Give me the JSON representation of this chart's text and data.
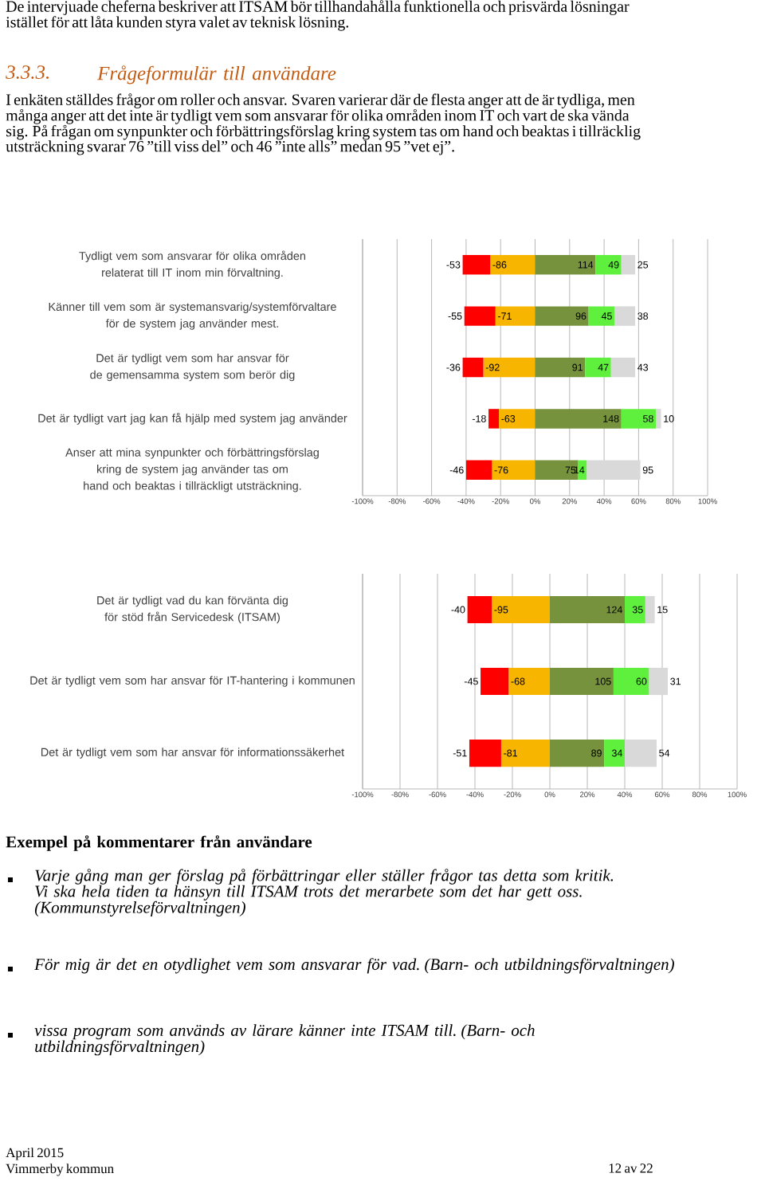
{
  "chart_data": [
    {
      "type": "bar",
      "orientation": "horizontal",
      "stacked": true,
      "grid": "x",
      "annotations": [
        "De intervjuade cheferna beskriver att ITSAM bör tillhandahålla funktionella och prisvärda lösningar istället för att låta kunden styra valet av teknisk lösning.",
        "3.3.3.",
        "Frågeformulär till användare",
        "I enkäten ställdes frågor om roller och ansvar. Svaren varierar där de flesta anger att de är tydliga, men många anger att det inte är tydligt vem som ansvarar för olika områden inom IT och vart de ska vända sig. På frågan om synpunkter och förbättringsförslag kring system tas om hand och beaktas i tillräcklig utsträckning svarar 76 ”till viss del” och 46 ”inte alls” medan 95 ”vet ej”.",
        {
          "text": "-86",
          "x": -26,
          "y": "Tydligt vem som ansvarar för olika områden relaterat till IT inom min förvaltning."
        },
        {
          "text": "-53",
          "x": -42,
          "y": "Tydligt vem som ansvarar för olika områden relaterat till IT inom min förvaltning."
        },
        {
          "text": "114",
          "x": 35,
          "y": "Tydligt vem som ansvarar för olika områden relaterat till IT inom min förvaltning."
        },
        {
          "text": "49",
          "x": 50,
          "y": "Tydligt vem som ansvarar för olika områden relaterat till IT inom min förvaltning."
        },
        {
          "text": "25",
          "x": 58,
          "y": "Tydligt vem som ansvarar för olika områden relaterat till IT inom min förvaltning."
        },
        {
          "text": "-71",
          "x": -23,
          "y": "Känner till vem som är systemansvarig/systemförvaltare för de system jag använder mest."
        },
        {
          "text": "-55",
          "x": -41,
          "y": "Känner till vem som är systemansvarig/systemförvaltare för de system jag använder mest."
        },
        {
          "text": "96",
          "x": 31,
          "y": "Känner till vem som är systemansvarig/systemförvaltare för de system jag använder mest."
        },
        {
          "text": "45",
          "x": 46,
          "y": "Känner till vem som är systemansvarig/systemförvaltare för de system jag använder mest."
        },
        {
          "text": "38",
          "x": 58,
          "y": "Känner till vem som är systemansvarig/systemförvaltare för de system jag använder mest."
        },
        {
          "text": "-92",
          "x": -30,
          "y": "Det är tydligt vem som har ansvar för de gemensamma system som berör dig"
        },
        {
          "text": "-36",
          "x": -42,
          "y": "Det är tydligt vem som har ansvar för de gemensamma system som berör dig"
        },
        {
          "text": "91",
          "x": 29,
          "y": "Det är tydligt vem som har ansvar för de gemensamma system som berör dig"
        },
        {
          "text": "47",
          "x": 44,
          "y": "Det är tydligt vem som har ansvar för de gemensamma system som berör dig"
        },
        {
          "text": "43",
          "x": 58,
          "y": "Det är tydligt vem som har ansvar för de gemensamma system som berör dig"
        },
        {
          "text": "-63",
          "x": -21,
          "y": "Det är tydligt vart jag kan få hjälp med system jag använder"
        },
        {
          "text": "-18",
          "x": -27,
          "y": "Det är tydligt vart jag kan få hjälp med system jag använder"
        },
        {
          "text": "148",
          "x": 50,
          "y": "Det är tydligt vart jag kan få hjälp med system jag använder"
        },
        {
          "text": "58",
          "x": 70,
          "y": "Det är tydligt vart jag kan få hjälp med system jag använder"
        },
        {
          "text": "10",
          "x": 73,
          "y": "Det är tydligt vart jag kan få hjälp med system jag använder"
        },
        {
          "text": "-76",
          "x": -25,
          "y": "Anser att mina synpunkter och förbättringsförslag kring de system jag använder tas om hand och beaktas i tillräckligt utsträckning."
        },
        {
          "text": "-46",
          "x": -40,
          "y": "Anser att mina synpunkter och förbättringsförslag kring de system jag använder tas om hand och beaktas i tillräckligt utsträckning."
        },
        {
          "text": "75",
          "x": 25,
          "y": "Anser att mina synpunkter och förbättringsförslag kring de system jag använder tas om hand och beaktas i tillräckligt utsträckning."
        },
        {
          "text": "14",
          "x": 30,
          "y": "Anser att mina synpunkter och förbättringsförslag kring de system jag använder tas om hand och beaktas i tillräckligt utsträckning."
        },
        {
          "text": "95",
          "x": 61,
          "y": "Anser att mina synpunkter och förbättringsförslag kring de system jag använder tas om hand och beaktas i tillräckligt utsträckning."
        }
      ],
      "categories": [
        "Tydligt vem som ansvarar för olika områden relaterat till IT inom min förvaltning.",
        "Känner till vem som är systemansvarig/systemförvaltare för de system jag använder mest.",
        "Det är tydligt vem som har ansvar för de gemensamma system som berör dig",
        "Det är tydligt vart jag kan få hjälp med system jag använder",
        "Anser att mina synpunkter och förbättringsförslag kring de system jag använder tas om hand och beaktas i tillräckligt utsträckning."
      ],
      "xlim": [
        -100,
        100
      ],
      "xticks": [
        {
          "value": -100,
          "label": "-100%"
        },
        {
          "value": -80,
          "label": "-80%"
        },
        {
          "value": -60,
          "label": "-60%"
        },
        {
          "value": -40,
          "label": "-40%"
        },
        {
          "value": -20,
          "label": "-20%"
        },
        {
          "value": 0,
          "label": "0%"
        },
        {
          "value": 20,
          "label": "20%"
        },
        {
          "value": 40,
          "label": "40%"
        },
        {
          "value": 60,
          "label": "60%"
        },
        {
          "value": 80,
          "label": "80%"
        },
        {
          "value": 100,
          "label": "100%"
        }
      ],
      "series": [
        {
          "color": "#f7b500",
          "values": [
            -26,
            -23,
            -30,
            -21,
            -25
          ]
        },
        {
          "color": "#ff0000",
          "values": [
            -16,
            -18,
            -12,
            -6,
            -15
          ]
        },
        {
          "color": "#76923c",
          "values": [
            35,
            31,
            29,
            50,
            25
          ]
        },
        {
          "color": "#5ef03c",
          "values": [
            15,
            15,
            15,
            20,
            5
          ]
        },
        {
          "color": "#d9d9d9",
          "values": [
            8,
            12,
            14,
            3,
            31
          ]
        }
      ]
    },
    {
      "type": "bar",
      "orientation": "horizontal",
      "stacked": true,
      "grid": "x",
      "annotations": [
        "Exempel på kommentarer från användare",
        "Varje gång man ger förslag på förbättringar eller ställer frågor tas detta som kritik. Vi ska hela tiden ta hänsyn till ITSAM trots det merarbete som det har gett oss. (Kommunstyrelseförvaltningen)",
        "För mig är det en otydlighet vem som ansvarar för vad.  (Barn- och utbildningsförvaltningen)",
        "vissa program som används av lärare känner inte ITSAM till.  (Barn- och utbildningsförvaltningen)",
        "April 2015",
        "Vimmerby kommun",
        "12 av 22",
        {
          "text": "-95",
          "x": -31,
          "y": "Det är tydligt vad du kan förvänta dig för stöd från Servicedesk (ITSAM)"
        },
        {
          "text": "-40",
          "x": -44,
          "y": "Det är tydligt vad du kan förvänta dig för stöd från Servicedesk (ITSAM)"
        },
        {
          "text": "124",
          "x": 40,
          "y": "Det är tydligt vad du kan förvänta dig för stöd från Servicedesk (ITSAM)"
        },
        {
          "text": "35",
          "x": 51,
          "y": "Det är tydligt vad du kan förvänta dig för stöd från Servicedesk (ITSAM)"
        },
        {
          "text": "15",
          "x": 56,
          "y": "Det är tydligt vad du kan förvänta dig för stöd från Servicedesk (ITSAM)"
        },
        {
          "text": "-68",
          "x": -22,
          "y": "Det är tydligt vem som har ansvar för IT-hantering i kommunen"
        },
        {
          "text": "-45",
          "x": -37,
          "y": "Det är tydligt vem som har ansvar för IT-hantering i kommunen"
        },
        {
          "text": "105",
          "x": 34,
          "y": "Det är tydligt vem som har ansvar för IT-hantering i kommunen"
        },
        {
          "text": "60",
          "x": 53,
          "y": "Det är tydligt vem som har ansvar för IT-hantering i kommunen"
        },
        {
          "text": "31",
          "x": 63,
          "y": "Det är tydligt vem som har ansvar för IT-hantering i kommunen"
        },
        {
          "text": "-81",
          "x": -26,
          "y": "Det är tydligt vem som har ansvar för informationssäkerhet"
        },
        {
          "text": "-51",
          "x": -43,
          "y": "Det är tydligt vem som har ansvar för informationssäkerhet"
        },
        {
          "text": "89",
          "x": 29,
          "y": "Det är tydligt vem som har ansvar för informationssäkerhet"
        },
        {
          "text": "34",
          "x": 40,
          "y": "Det är tydligt vem som har ansvar för informationssäkerhet"
        },
        {
          "text": "54",
          "x": 57,
          "y": "Det är tydligt vem som har ansvar för informationssäkerhet"
        }
      ],
      "categories": [
        "Det är tydligt vad du kan förvänta dig för stöd från Servicedesk (ITSAM)",
        "Det är tydligt vem som har ansvar för IT-hantering i kommunen",
        "Det är tydligt vem som har ansvar för informationssäkerhet"
      ],
      "xlim": [
        -100,
        100
      ],
      "xticks": [
        {
          "value": -100,
          "label": "-100%"
        },
        {
          "value": -80,
          "label": "-80%"
        },
        {
          "value": -60,
          "label": "-60%"
        },
        {
          "value": -40,
          "label": "-40%"
        },
        {
          "value": -20,
          "label": "-20%"
        },
        {
          "value": 0,
          "label": "0%"
        },
        {
          "value": 20,
          "label": "20%"
        },
        {
          "value": 40,
          "label": "40%"
        },
        {
          "value": 60,
          "label": "60%"
        },
        {
          "value": 80,
          "label": "80%"
        },
        {
          "value": 100,
          "label": "100%"
        }
      ],
      "series": [
        {
          "color": "#f7b500",
          "values": [
            -31,
            -22,
            -26
          ]
        },
        {
          "color": "#ff0000",
          "values": [
            -13,
            -15,
            -17
          ]
        },
        {
          "color": "#76923c",
          "values": [
            40,
            34,
            29
          ]
        },
        {
          "color": "#5ef03c",
          "values": [
            11,
            19,
            11
          ]
        },
        {
          "color": "#d9d9d9",
          "values": [
            5,
            10,
            17
          ]
        }
      ]
    }
  ]
}
